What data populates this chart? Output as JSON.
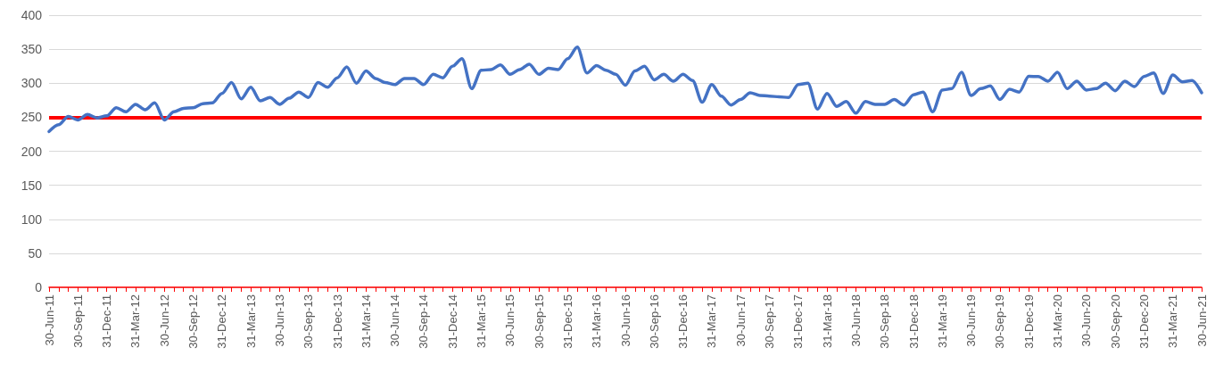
{
  "chart_data": {
    "type": "line",
    "categories": [
      "30-Jun-11",
      null,
      null,
      "30-Sep-11",
      null,
      null,
      "31-Dec-11",
      null,
      null,
      "31-Mar-12",
      null,
      null,
      "30-Jun-12",
      null,
      null,
      "30-Sep-12",
      null,
      null,
      "31-Dec-12",
      null,
      null,
      "31-Mar-13",
      null,
      null,
      "30-Jun-13",
      null,
      null,
      "30-Sep-13",
      null,
      null,
      "31-Dec-13",
      null,
      null,
      "31-Mar-14",
      null,
      null,
      "30-Jun-14",
      null,
      null,
      "30-Sep-14",
      null,
      null,
      "31-Dec-14",
      null,
      null,
      "31-Mar-15",
      null,
      null,
      "30-Jun-15",
      null,
      null,
      "30-Sep-15",
      null,
      null,
      "31-Dec-15",
      null,
      null,
      "31-Mar-16",
      null,
      null,
      "30-Jun-16",
      null,
      null,
      "30-Sep-16",
      null,
      null,
      "31-Dec-16",
      null,
      null,
      "31-Mar-17",
      null,
      null,
      "30-Jun-17",
      null,
      null,
      "30-Sep-17",
      null,
      null,
      "31-Dec-17",
      null,
      null,
      "31-Mar-18",
      null,
      null,
      "30-Jun-18",
      null,
      null,
      "30-Sep-18",
      null,
      null,
      "31-Dec-18",
      null,
      null,
      "31-Mar-19",
      null,
      null,
      "30-Jun-19",
      null,
      null,
      "30-Sep-19",
      null,
      null,
      "31-Dec-19",
      null,
      null,
      "31-Mar-20",
      null,
      null,
      "30-Jun-20",
      null,
      null,
      "30-Sep-20",
      null,
      null,
      "31-Dec-20",
      null,
      null,
      "31-Mar-21",
      null,
      null,
      "30-Jun-21"
    ],
    "series": [
      {
        "color": "#4472c4",
        "values": [
          229,
          239,
          251,
          246,
          254,
          249,
          252,
          264,
          258,
          269,
          261,
          271,
          246,
          258,
          263,
          264,
          270,
          271,
          285,
          301,
          277,
          294,
          274,
          279,
          269,
          278,
          287,
          279,
          301,
          294,
          308,
          324,
          300,
          318,
          307,
          301,
          298,
          307,
          307,
          298,
          313,
          308,
          325,
          336,
          292,
          319,
          320,
          327,
          313,
          320,
          328,
          313,
          322,
          320,
          336,
          353,
          315,
          326,
          319,
          313,
          297,
          318,
          325,
          305,
          313,
          303,
          313,
          304,
          272,
          298,
          281,
          268,
          276,
          286,
          282,
          281,
          280,
          279,
          298,
          300,
          262,
          285,
          266,
          273,
          256,
          273,
          269,
          269,
          276,
          268,
          283,
          287,
          258,
          290,
          292,
          316,
          282,
          292,
          296,
          276,
          291,
          287,
          310,
          310,
          303,
          316,
          292,
          303,
          290,
          292,
          300,
          289,
          303,
          295,
          310,
          315,
          285,
          312,
          302,
          304,
          286
        ]
      }
    ],
    "ylim": [
      0,
      400
    ],
    "yticks": [
      0,
      50,
      100,
      150,
      200,
      250,
      300,
      350,
      400
    ],
    "ref_lines": [
      {
        "axis": "y",
        "value": 250,
        "color": "#ff0000"
      }
    ],
    "grid": "y",
    "marker": "none",
    "line_style": "solid"
  }
}
